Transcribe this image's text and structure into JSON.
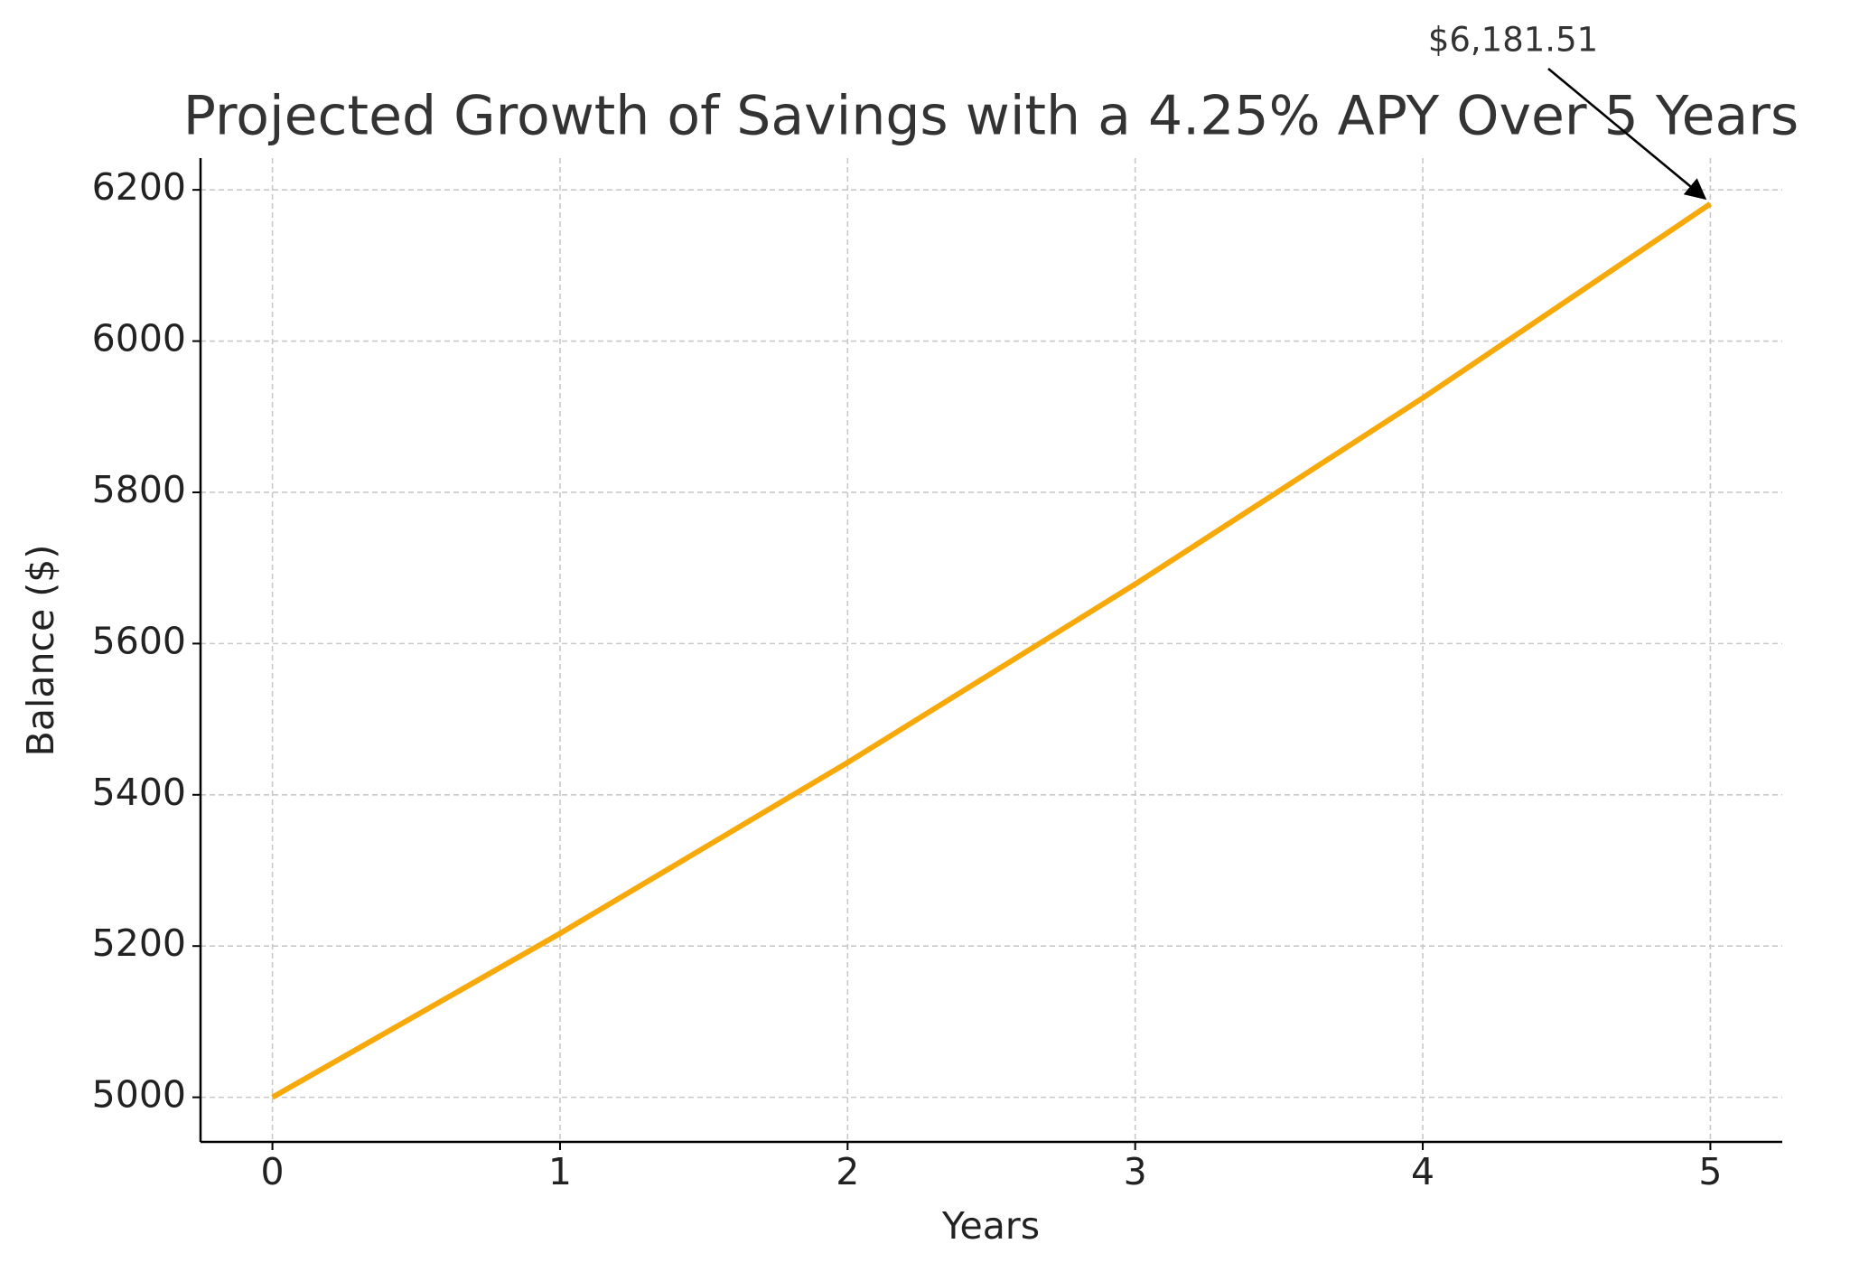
{
  "chart_data": {
    "type": "line",
    "title": "Projected Growth of Savings with a 4.25% APY Over 5 Years",
    "x_label": "Years",
    "y_label": "Balance ($)",
    "x": [
      0,
      1,
      2,
      3,
      4,
      5
    ],
    "series": [
      {
        "name": "Balance",
        "color": "#f7a90a",
        "values": [
          5000,
          5216.7,
          5442.7,
          5678.6,
          5924.8,
          6181.51
        ]
      }
    ],
    "xlim": [
      -0.25,
      5.25
    ],
    "xticks": [
      0,
      1,
      2,
      3,
      4,
      5
    ],
    "ylim": [
      4941,
      6242
    ],
    "yticks": [
      5000,
      5200,
      5400,
      5600,
      5800,
      6000,
      6200
    ],
    "grid": true,
    "annotations": [
      {
        "text": "$6,181.51",
        "x": 5,
        "y": 6181.51
      }
    ]
  }
}
